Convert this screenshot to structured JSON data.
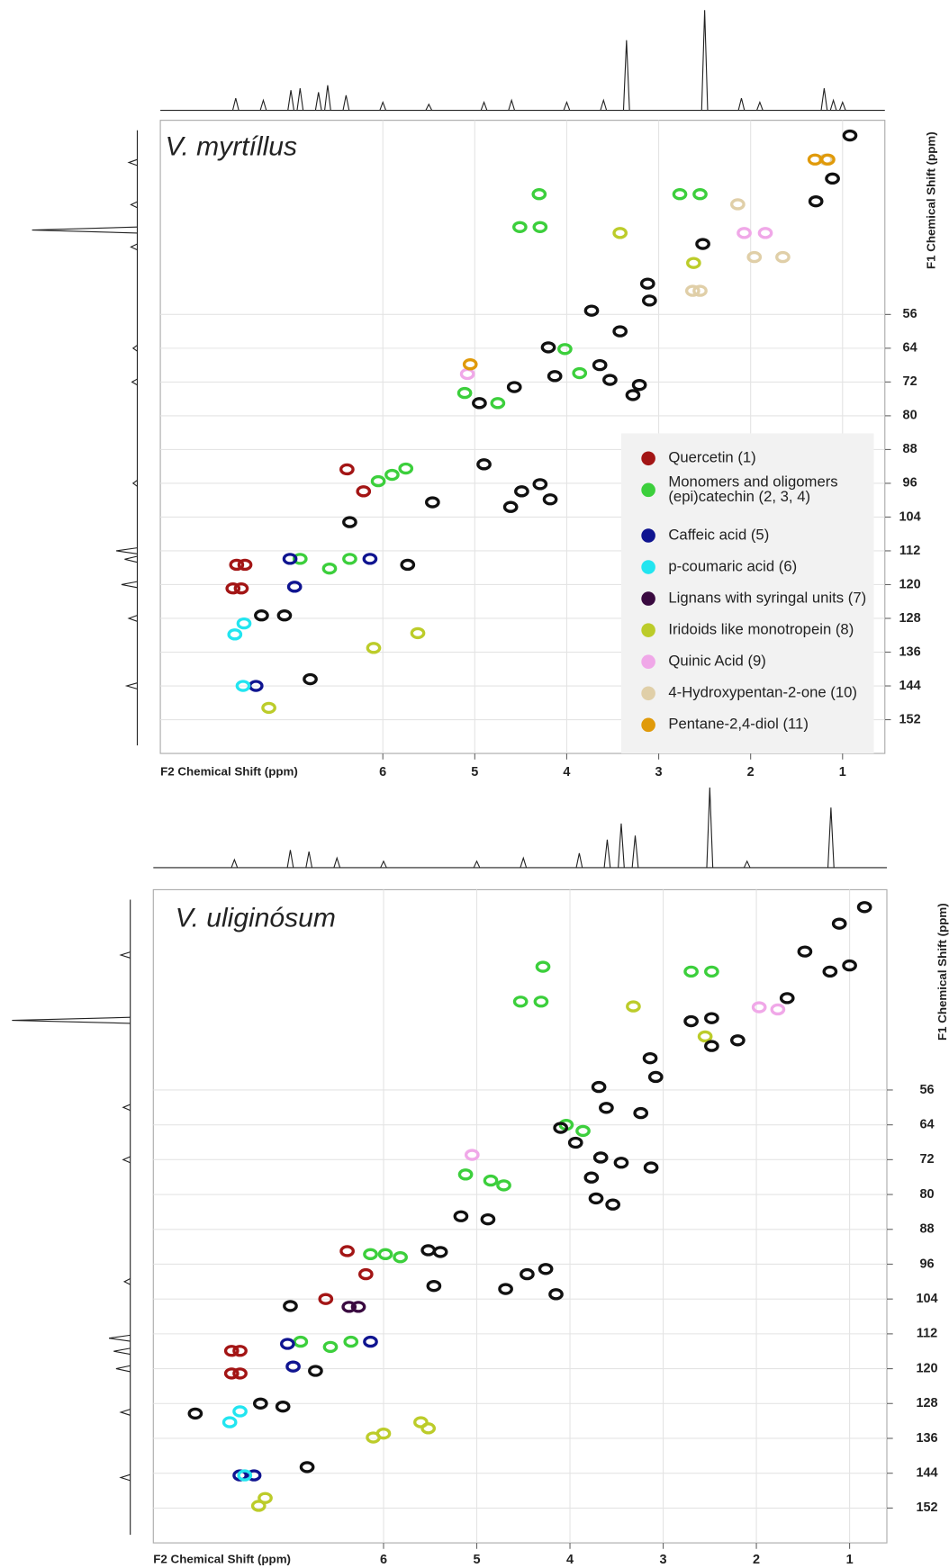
{
  "chart_data": [
    {
      "type": "scatter",
      "title": "V. myrtíllus",
      "x_label": "F2 Chemical Shift (ppm)",
      "y_label": "F1 Chemical Shift (ppm)",
      "xlim": [
        8.42,
        0.54
      ],
      "ylim": [
        10,
        160
      ],
      "xticks": [
        6,
        5,
        4,
        3,
        2,
        1
      ],
      "yticks": [
        56,
        64,
        72,
        80,
        88,
        96,
        104,
        112,
        120,
        128,
        136,
        144,
        152
      ],
      "grid": true,
      "legend": "lower right",
      "series": [
        {
          "name": "Quercetin  (1)",
          "color": "#a31515",
          "x": [
            6.39,
            6.21,
            7.59,
            7.5,
            7.63,
            7.54
          ],
          "values": [
            92.7,
            97.9,
            115.3,
            115.3,
            120.9,
            120.9
          ]
        },
        {
          "name": "Monomers and oligomers\n(epi)catechin  (2, 3, 4)",
          "color": "#3ccf3c",
          "x": [
            4.3,
            2.77,
            2.55,
            4.51,
            4.29,
            4.02,
            3.86,
            5.11,
            4.75,
            5.9,
            5.75,
            6.05,
            6.9,
            6.58,
            6.36
          ],
          "values": [
            27.5,
            27.5,
            27.5,
            35.3,
            35.3,
            64.2,
            69.9,
            74.6,
            77,
            94,
            92.5,
            95.5,
            113.9,
            116.2,
            113.9
          ]
        },
        {
          "name": "Caffeic acid  (5)",
          "color": "#0f1490",
          "x": [
            6.14,
            7.01,
            6.96,
            7.38
          ],
          "values": [
            113.9,
            113.9,
            120.5,
            144
          ]
        },
        {
          "name": "p-coumaric acid  (6)",
          "color": "#22e5f0",
          "x": [
            7.51,
            7.61,
            7.52
          ],
          "values": [
            129.2,
            131.8,
            144
          ]
        },
        {
          "name": "Lignans with syringal units (7)",
          "color": "#3a0a40",
          "x": [],
          "values": []
        },
        {
          "name": "Iridoids like monotropein (8)",
          "color": "#bccc2a",
          "x": [
            3.42,
            2.62,
            5.62,
            6.1,
            7.24
          ],
          "values": [
            36.7,
            43.8,
            131.5,
            135,
            149.2
          ]
        },
        {
          "name": "Quinic Acid  (9)",
          "color": "#f0a8e8",
          "x": [
            2.07,
            1.84,
            5.08
          ],
          "values": [
            36.7,
            36.7,
            70.1
          ]
        },
        {
          "name": "4-Hydroxypentan-2-one (10)",
          "color": "#e0cfa8",
          "x": [
            2.14,
            1.96,
            2.63,
            2.55,
            1.18,
            1.65
          ],
          "values": [
            29.9,
            42.4,
            50.4,
            50.4,
            19.3,
            42.4
          ]
        },
        {
          "name": "Pentane-2,4-diol  (11)",
          "color": "#e09a0a",
          "x": [
            1.3,
            1.16,
            5.05
          ],
          "values": [
            19.3,
            19.3,
            67.8
          ]
        },
        {
          "color": "#111111",
          "x": [
            0.92,
            1.11,
            1.29,
            2.52,
            3.12,
            3.1,
            3.73,
            3.42,
            4.2,
            4.13,
            4.57,
            4.95,
            3.64,
            3.21,
            3.53,
            3.28,
            4.9,
            4.49,
            4.61,
            4.18,
            4.29,
            5.46,
            5.73,
            6.36,
            7.07,
            7.32,
            6.79
          ],
          "values": [
            13.6,
            23.8,
            29.2,
            39.3,
            48.7,
            52.7,
            55.1,
            60,
            63.8,
            70.6,
            73.2,
            77,
            68,
            72.7,
            71.5,
            75.1,
            91.5,
            97.9,
            101.6,
            99.8,
            96.2,
            100.5,
            115.3,
            105.2,
            127.3,
            127.3,
            142.4
          ]
        }
      ],
      "f2_projection": {
        "x": [
          7.6,
          7.3,
          7.0,
          6.9,
          6.7,
          6.6,
          6.4,
          6.0,
          5.5,
          4.9,
          4.6,
          4.0,
          3.6,
          3.35,
          2.5,
          2.1,
          1.9,
          1.2,
          1.1,
          1.0
        ],
        "values": [
          12,
          10,
          20,
          22,
          18,
          25,
          15,
          8,
          6,
          8,
          10,
          8,
          10,
          70,
          100,
          12,
          8,
          22,
          10,
          8
        ]
      },
      "f1_projection": {
        "y": [
          20,
          30,
          36,
          40,
          64,
          72,
          96,
          112,
          114,
          120,
          128,
          144
        ],
        "values": [
          8,
          6,
          100,
          6,
          4,
          5,
          4,
          20,
          12,
          15,
          8,
          10
        ]
      }
    },
    {
      "type": "scatter",
      "title": "V. uliginósum",
      "x_label": "F2 Chemical Shift (ppm)",
      "y_label": "F1 Chemical Shift (ppm)",
      "xlim": [
        8.47,
        0.6
      ],
      "ylim": [
        10,
        160
      ],
      "xticks": [
        6,
        5,
        4,
        3,
        2,
        1
      ],
      "yticks": [
        56,
        64,
        72,
        80,
        88,
        96,
        104,
        112,
        120,
        128,
        136,
        144,
        152
      ],
      "grid": true,
      "series": [
        {
          "color": "#a31515",
          "x": [
            6.39,
            6.19,
            7.63,
            7.54,
            7.63,
            7.54,
            6.62
          ],
          "values": [
            93,
            98.3,
            115.9,
            115.9,
            121.1,
            121.1,
            104
          ]
        },
        {
          "color": "#3ccf3c",
          "x": [
            4.29,
            2.7,
            2.48,
            4.53,
            4.31,
            4.04,
            3.86,
            5.12,
            4.85,
            4.71,
            5.82,
            5.98,
            6.14,
            6.89,
            6.57,
            6.35
          ],
          "values": [
            27.7,
            28.8,
            28.8,
            35.7,
            35.7,
            64,
            65.4,
            75.4,
            76.8,
            77.9,
            94.4,
            93.7,
            93.7,
            113.8,
            115,
            113.8
          ]
        },
        {
          "color": "#0f1490",
          "x": [
            6.14,
            7.03,
            6.97,
            7.39,
            7.54
          ],
          "values": [
            113.8,
            114.3,
            119.5,
            144.5,
            144.5
          ]
        },
        {
          "color": "#22e5f0",
          "x": [
            7.54,
            7.65,
            7.49
          ],
          "values": [
            129.8,
            132.3,
            144.5
          ]
        },
        {
          "color": "#3a0a40",
          "x": [
            6.37,
            6.27
          ],
          "values": [
            105.8,
            105.8
          ]
        },
        {
          "color": "#bccc2a",
          "x": [
            3.32,
            2.55,
            6.0,
            6.11,
            5.6,
            5.52,
            7.27,
            7.34
          ],
          "values": [
            36.8,
            43.7,
            134.9,
            135.8,
            132.3,
            133.7,
            149.7,
            151.5
          ]
        },
        {
          "color": "#f0a8e8",
          "x": [
            1.97,
            1.77,
            5.05
          ],
          "values": [
            37,
            37.5,
            70.9
          ]
        },
        {
          "color": "#111111",
          "x": [
            0.84,
            1.11,
            1.0,
            1.21,
            1.48,
            1.67,
            2.2,
            2.48,
            2.48,
            2.7,
            3.08,
            3.14,
            3.69,
            3.61,
            3.24,
            4.1,
            3.94,
            3.67,
            3.45,
            3.13,
            3.77,
            3.54,
            3.72,
            5.17,
            4.88,
            4.26,
            4.46,
            4.69,
            4.15,
            5.46,
            5.52,
            5.39,
            7.0,
            6.73,
            7.32,
            7.08,
            8.02,
            6.82
          ],
          "values": [
            14,
            17.8,
            27.4,
            28.8,
            24.2,
            34.9,
            44.6,
            39.5,
            45.9,
            40.2,
            53,
            48.7,
            55.3,
            60.1,
            61.3,
            64.7,
            68.1,
            71.5,
            72.7,
            73.8,
            76.1,
            82.3,
            80.9,
            85,
            85.7,
            97.1,
            98.3,
            101.7,
            102.9,
            101,
            92.8,
            93.2,
            105.6,
            120.5,
            128,
            128.7,
            130.3,
            142.6
          ]
        }
      ],
      "f2_projection": {
        "x": [
          7.6,
          7.0,
          6.8,
          6.5,
          6.0,
          5.0,
          4.5,
          3.9,
          3.6,
          3.45,
          3.3,
          2.5,
          2.1,
          1.2
        ],
        "values": [
          10,
          22,
          20,
          12,
          8,
          8,
          12,
          18,
          35,
          55,
          40,
          100,
          8,
          75
        ]
      },
      "f1_projection": {
        "y": [
          25,
          40,
          60,
          72,
          100,
          113,
          116,
          120,
          130,
          145
        ],
        "values": [
          8,
          100,
          6,
          6,
          5,
          18,
          14,
          12,
          8,
          8
        ]
      }
    }
  ]
}
